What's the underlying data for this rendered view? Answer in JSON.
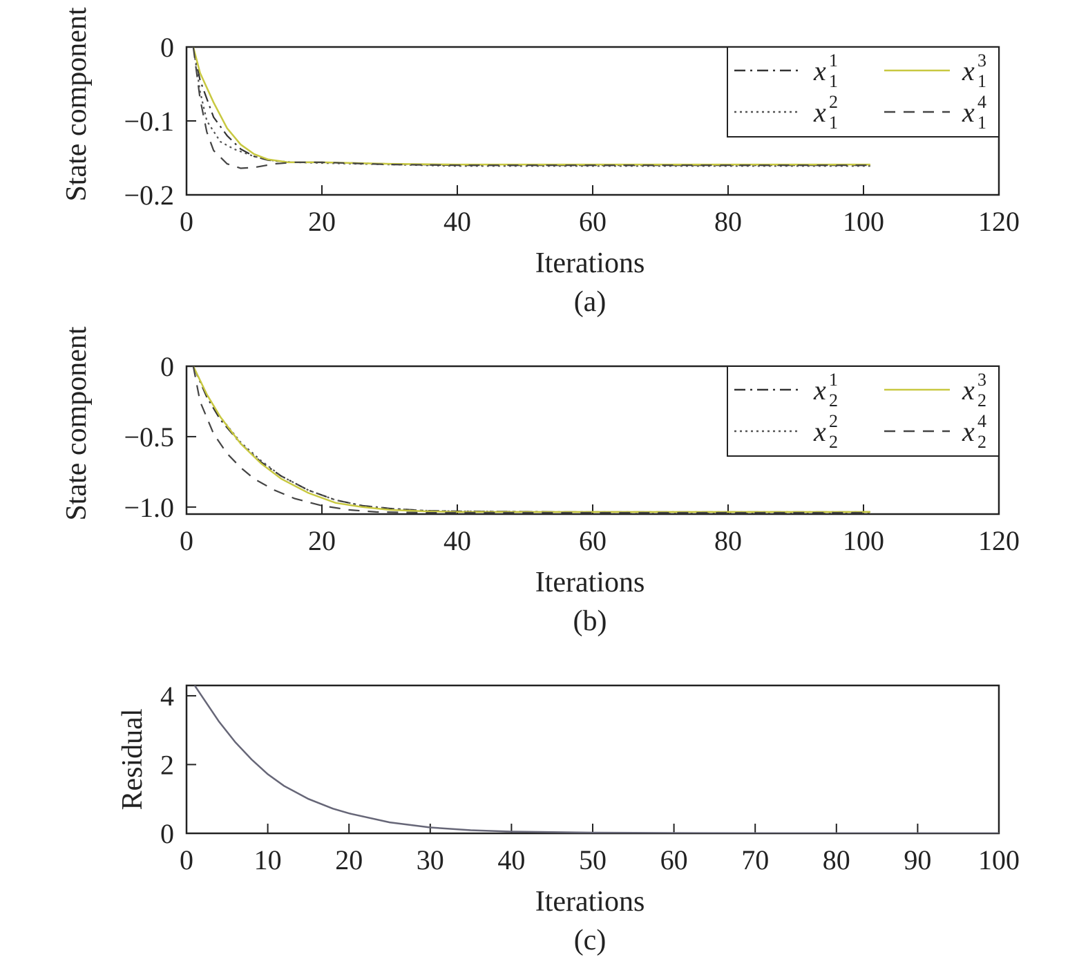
{
  "chart_data": [
    {
      "type": "line",
      "caption": "(a)",
      "xlabel": "Iterations",
      "ylabel": "State component",
      "xlim": [
        0,
        120
      ],
      "ylim": [
        -0.2,
        0
      ],
      "xticks": [
        "0",
        "20",
        "40",
        "60",
        "80",
        "100",
        "120"
      ],
      "yticks": [
        "0",
        "−0.1",
        "−0.2"
      ],
      "grid": false,
      "legend_position": "top-right",
      "series": [
        {
          "name": "x",
          "sub": "1",
          "sup": "1",
          "dash": "dashdot",
          "color": "#333333",
          "x": [
            1,
            2,
            4,
            6,
            8,
            10,
            12,
            15,
            20,
            30,
            40,
            60,
            80,
            101
          ],
          "y": [
            0,
            -0.045,
            -0.095,
            -0.12,
            -0.138,
            -0.148,
            -0.153,
            -0.156,
            -0.156,
            -0.158,
            -0.16,
            -0.16,
            -0.16,
            -0.16
          ]
        },
        {
          "name": "x",
          "sub": "1",
          "sup": "2",
          "dash": "dotted",
          "color": "#555555",
          "x": [
            1,
            2,
            3,
            5,
            7,
            10,
            13,
            16,
            20,
            30,
            40,
            60,
            80,
            101
          ],
          "y": [
            0,
            -0.06,
            -0.1,
            -0.128,
            -0.138,
            -0.148,
            -0.154,
            -0.156,
            -0.157,
            -0.159,
            -0.161,
            -0.161,
            -0.161,
            -0.161
          ]
        },
        {
          "name": "x",
          "sub": "1",
          "sup": "3",
          "dash": "solid",
          "color": "#c8c840",
          "x": [
            1,
            2,
            4,
            6,
            8,
            10,
            12,
            15,
            20,
            30,
            40,
            60,
            80,
            101
          ],
          "y": [
            0,
            -0.035,
            -0.075,
            -0.11,
            -0.132,
            -0.145,
            -0.152,
            -0.156,
            -0.156,
            -0.158,
            -0.159,
            -0.159,
            -0.159,
            -0.159
          ]
        },
        {
          "name": "x",
          "sub": "1",
          "sup": "4",
          "dash": "dashed",
          "color": "#444444",
          "x": [
            1,
            2,
            3,
            4,
            6,
            8,
            10,
            13,
            16,
            20,
            30,
            40,
            60,
            80,
            101
          ],
          "y": [
            0,
            -0.07,
            -0.115,
            -0.14,
            -0.158,
            -0.164,
            -0.163,
            -0.158,
            -0.156,
            -0.156,
            -0.159,
            -0.16,
            -0.16,
            -0.16,
            -0.16
          ]
        }
      ]
    },
    {
      "type": "line",
      "caption": "(b)",
      "xlabel": "Iterations",
      "ylabel": "State component",
      "xlim": [
        0,
        120
      ],
      "ylim": [
        -1.05,
        0
      ],
      "xticks": [
        "0",
        "20",
        "40",
        "60",
        "80",
        "100",
        "120"
      ],
      "yticks": [
        "0",
        "−0.5",
        "−1.0"
      ],
      "grid": false,
      "legend_position": "top-right",
      "series": [
        {
          "name": "x",
          "sub": "2",
          "sup": "1",
          "dash": "dashdot",
          "color": "#333333",
          "x": [
            1,
            3,
            5,
            8,
            11,
            14,
            18,
            22,
            26,
            30,
            35,
            40,
            60,
            80,
            101
          ],
          "y": [
            0,
            -0.22,
            -0.38,
            -0.55,
            -0.68,
            -0.78,
            -0.88,
            -0.95,
            -0.99,
            -1.01,
            -1.025,
            -1.03,
            -1.035,
            -1.035,
            -1.035
          ]
        },
        {
          "name": "x",
          "sub": "2",
          "sup": "2",
          "dash": "dotted",
          "color": "#555555",
          "x": [
            1,
            3,
            5,
            8,
            11,
            14,
            18,
            22,
            26,
            30,
            35,
            40,
            60,
            80,
            101
          ],
          "y": [
            0,
            -0.2,
            -0.36,
            -0.54,
            -0.67,
            -0.78,
            -0.88,
            -0.95,
            -0.99,
            -1.01,
            -1.025,
            -1.03,
            -1.035,
            -1.04,
            -1.04
          ]
        },
        {
          "name": "x",
          "sub": "2",
          "sup": "3",
          "dash": "solid",
          "color": "#c8c840",
          "x": [
            1,
            3,
            5,
            8,
            11,
            14,
            18,
            22,
            26,
            30,
            35,
            40,
            60,
            80,
            101
          ],
          "y": [
            0,
            -0.2,
            -0.36,
            -0.55,
            -0.69,
            -0.8,
            -0.9,
            -0.97,
            -1.0,
            -1.02,
            -1.03,
            -1.035,
            -1.035,
            -1.035,
            -1.035
          ]
        },
        {
          "name": "x",
          "sub": "2",
          "sup": "4",
          "dash": "dashed",
          "color": "#444444",
          "x": [
            1,
            2,
            4,
            6,
            8,
            10,
            13,
            16,
            20,
            24,
            28,
            35,
            40,
            60,
            80,
            101
          ],
          "y": [
            0,
            -0.25,
            -0.48,
            -0.62,
            -0.72,
            -0.8,
            -0.88,
            -0.94,
            -0.99,
            -1.02,
            -1.035,
            -1.04,
            -1.04,
            -1.04,
            -1.04,
            -1.04
          ]
        }
      ]
    },
    {
      "type": "line",
      "caption": "(c)",
      "xlabel": "Iterations",
      "ylabel": "Residual",
      "xlim": [
        0,
        100
      ],
      "ylim": [
        0,
        4.3
      ],
      "xticks": [
        "0",
        "10",
        "20",
        "30",
        "40",
        "50",
        "60",
        "70",
        "80",
        "90",
        "100"
      ],
      "yticks": [
        "0",
        "2",
        "4"
      ],
      "grid": false,
      "series": [
        {
          "name": "",
          "dash": "solid",
          "color": "#666677",
          "x": [
            1,
            2,
            4,
            6,
            8,
            10,
            12,
            15,
            18,
            20,
            25,
            30,
            35,
            40,
            50,
            60,
            70,
            80,
            90,
            100
          ],
          "y": [
            4.3,
            3.95,
            3.25,
            2.65,
            2.15,
            1.72,
            1.38,
            1.0,
            0.72,
            0.58,
            0.32,
            0.17,
            0.09,
            0.05,
            0.02,
            0.01,
            0.005,
            0.003,
            0.002,
            0.001
          ]
        }
      ]
    }
  ]
}
